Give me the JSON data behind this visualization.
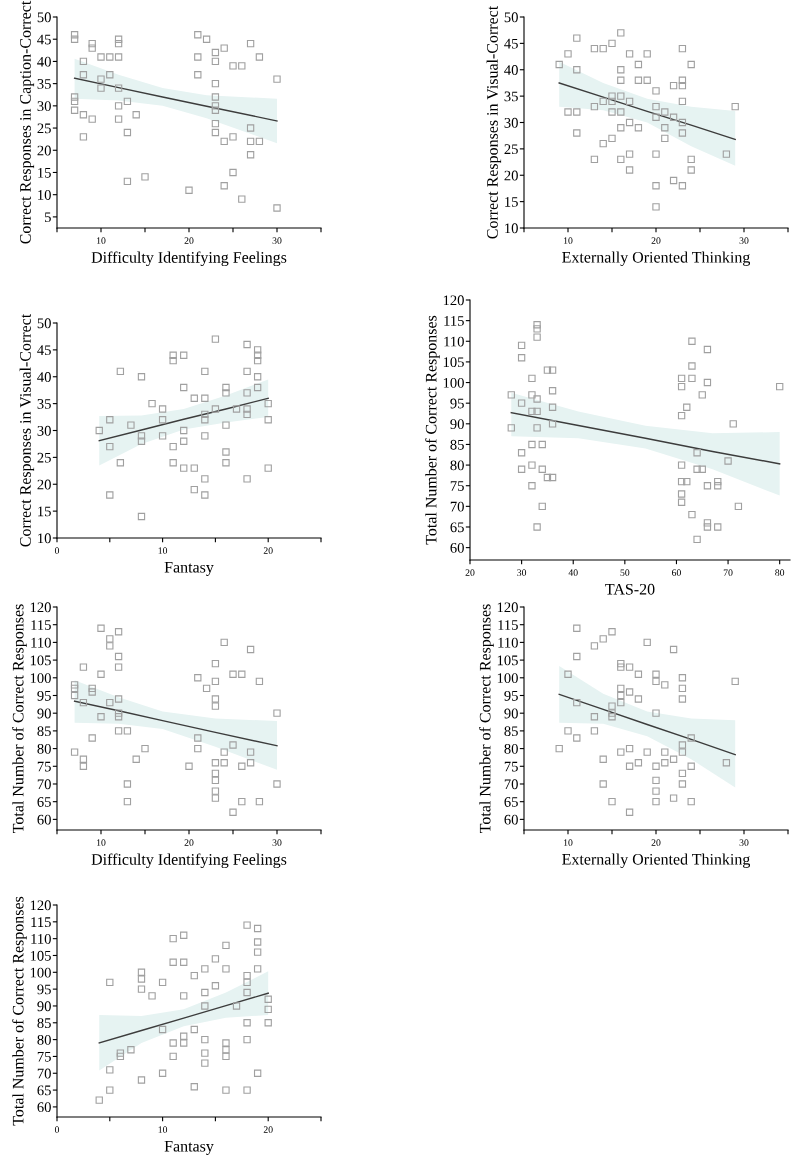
{
  "chart_data": [
    {
      "type": "scatter",
      "xlabel": "Difficulty Identifying Feelings",
      "ylabel": "Correct Responses in Caption-Correct",
      "xlim": [
        5,
        35
      ],
      "xticks": [
        {
          "value": 5,
          "label": null
        },
        10,
        {
          "value": 15,
          "label": null
        },
        20,
        {
          "value": 25,
          "label": null
        },
        30,
        {
          "value": 35,
          "label": null
        }
      ],
      "ylim": [
        2.5,
        50
      ],
      "yticks": [
        5,
        10,
        15,
        20,
        25,
        30,
        35,
        40,
        45,
        50
      ],
      "series": [
        {
          "marker": "square",
          "color": "#a0a0a0",
          "x": [
            7,
            7,
            7,
            7,
            7,
            8,
            8,
            8,
            8,
            9,
            9,
            9,
            10,
            10,
            10,
            11,
            11,
            12,
            12,
            12,
            12,
            12,
            12,
            13,
            13,
            13,
            14,
            15,
            20,
            21,
            21,
            21,
            22,
            23,
            23,
            23,
            23,
            23,
            23,
            23,
            23,
            24,
            24,
            24,
            25,
            25,
            25,
            26,
            26,
            27,
            27,
            27,
            27,
            28,
            28,
            30,
            30
          ],
          "values": [
            46,
            45,
            32,
            31,
            29,
            40,
            37,
            28,
            23,
            44,
            43,
            27,
            41,
            36,
            34,
            41,
            37,
            45,
            44,
            41,
            34,
            30,
            27,
            31,
            24,
            13,
            28,
            14,
            11,
            46,
            41,
            37,
            45,
            42,
            40,
            35,
            32,
            30,
            29,
            26,
            24,
            43,
            22,
            12,
            39,
            23,
            15,
            39,
            9,
            44,
            25,
            22,
            19,
            41,
            22,
            36,
            7
          ]
        },
        {
          "type": "line",
          "color": "#3c3c3c",
          "x": [
            7,
            12,
            17,
            22,
            30
          ],
          "values": [
            36.2,
            34.1,
            32.0,
            29.9,
            26.6
          ],
          "lower": [
            31.6,
            31.2,
            30.0,
            27.2,
            21.6
          ],
          "upper": [
            40.6,
            37.0,
            34.0,
            32.4,
            31.6
          ]
        }
      ]
    },
    {
      "type": "scatter",
      "xlabel": "Externally Oriented Thinking",
      "ylabel": "Correct Responses in Visual-Correct",
      "xlim": [
        5,
        35
      ],
      "xticks": [
        {
          "value": 5,
          "label": null
        },
        10,
        {
          "value": 15,
          "label": null
        },
        20,
        {
          "value": 25,
          "label": null
        },
        30,
        {
          "value": 35,
          "label": null
        }
      ],
      "ylim": [
        10,
        50
      ],
      "yticks": [
        10,
        15,
        20,
        25,
        30,
        35,
        40,
        45,
        50
      ],
      "series": [
        {
          "marker": "square",
          "color": "#a0a0a0",
          "x": [
            9,
            10,
            10,
            11,
            11,
            11,
            11,
            13,
            13,
            13,
            14,
            14,
            14,
            15,
            15,
            15,
            15,
            15,
            16,
            16,
            16,
            16,
            16,
            16,
            16,
            17,
            17,
            17,
            17,
            17,
            18,
            18,
            18,
            19,
            19,
            20,
            20,
            20,
            20,
            20,
            20,
            21,
            21,
            21,
            22,
            22,
            22,
            23,
            23,
            23,
            23,
            23,
            23,
            23,
            24,
            24,
            24,
            28,
            29
          ],
          "values": [
            41,
            43,
            32,
            46,
            40,
            32,
            28,
            44,
            33,
            23,
            44,
            34,
            26,
            45,
            35,
            34,
            32,
            27,
            47,
            40,
            38,
            35,
            32,
            29,
            23,
            43,
            34,
            30,
            24,
            21,
            41,
            38,
            29,
            43,
            38,
            36,
            33,
            31,
            24,
            18,
            14,
            32,
            29,
            27,
            37,
            31,
            19,
            44,
            38,
            37,
            34,
            30,
            28,
            18,
            41,
            23,
            21,
            24,
            33
          ]
        },
        {
          "type": "line",
          "color": "#3c3c3c",
          "x": [
            9,
            14,
            19,
            24,
            29
          ],
          "values": [
            37.5,
            34.8,
            32.1,
            29.5,
            26.8
          ],
          "lower": [
            33.0,
            32.3,
            30.0,
            25.5,
            21.8
          ],
          "upper": [
            41.5,
            37.5,
            34.5,
            33.0,
            32.2
          ]
        }
      ]
    },
    {
      "type": "scatter",
      "xlabel": "Fantasy",
      "ylabel": "Correct Responses in Visual-Correct",
      "xlim": [
        0,
        25
      ],
      "xticks": [
        0,
        {
          "value": 5,
          "label": null
        },
        10,
        {
          "value": 15,
          "label": null
        },
        20,
        {
          "value": 25,
          "label": null
        }
      ],
      "ylim": [
        10,
        50
      ],
      "yticks": [
        10,
        15,
        20,
        25,
        30,
        35,
        40,
        45,
        50
      ],
      "series": [
        {
          "marker": "square",
          "color": "#a0a0a0",
          "x": [
            4,
            5,
            5,
            5,
            6,
            6,
            7,
            8,
            8,
            8,
            8,
            9,
            10,
            10,
            10,
            11,
            11,
            11,
            11,
            12,
            12,
            12,
            12,
            12,
            13,
            13,
            13,
            14,
            14,
            14,
            14,
            14,
            14,
            14,
            15,
            15,
            16,
            16,
            16,
            16,
            16,
            17,
            18,
            18,
            18,
            18,
            18,
            18,
            19,
            19,
            19,
            19,
            19,
            20,
            20,
            20
          ],
          "values": [
            30,
            32,
            27,
            18,
            41,
            24,
            31,
            40,
            29,
            28,
            14,
            35,
            34,
            32,
            29,
            44,
            43,
            27,
            24,
            44,
            38,
            30,
            28,
            23,
            36,
            23,
            19,
            41,
            36,
            33,
            32,
            29,
            21,
            18,
            47,
            34,
            38,
            37,
            31,
            26,
            24,
            34,
            46,
            41,
            37,
            34,
            33,
            21,
            45,
            44,
            43,
            40,
            38,
            35,
            32,
            23
          ]
        },
        {
          "type": "line",
          "color": "#3c3c3c",
          "x": [
            4,
            8,
            12,
            16,
            20
          ],
          "values": [
            28.1,
            30.1,
            32.1,
            34.0,
            36.0
          ],
          "lower": [
            23.5,
            27.5,
            30.2,
            31.5,
            32.5
          ],
          "upper": [
            32.7,
            32.8,
            34.0,
            36.5,
            39.5
          ]
        }
      ]
    },
    {
      "type": "scatter",
      "xlabel": "TAS-20",
      "ylabel": "Total Number of Correct Responses",
      "xlim": [
        20,
        82
      ],
      "xticks": [
        20,
        30,
        40,
        50,
        60,
        70,
        80
      ],
      "ylim": [
        57,
        120
      ],
      "yticks": [
        60,
        65,
        70,
        75,
        80,
        85,
        90,
        95,
        100,
        105,
        110,
        115,
        120
      ],
      "series": [
        {
          "marker": "square",
          "color": "#a0a0a0",
          "x": [
            28,
            28,
            30,
            30,
            30,
            30,
            30,
            32,
            32,
            32,
            32,
            32,
            32,
            33,
            33,
            33,
            33,
            33,
            33,
            33,
            34,
            34,
            34,
            35,
            35,
            36,
            36,
            36,
            36,
            36,
            61,
            61,
            61,
            61,
            61,
            61,
            61,
            62,
            62,
            63,
            63,
            63,
            63,
            64,
            64,
            64,
            65,
            65,
            66,
            66,
            66,
            66,
            66,
            68,
            68,
            68,
            70,
            71,
            72,
            80
          ],
          "values": [
            97,
            89,
            109,
            106,
            95,
            83,
            79,
            101,
            97,
            93,
            85,
            80,
            75,
            114,
            113,
            111,
            96,
            93,
            89,
            65,
            85,
            79,
            70,
            103,
            77,
            103,
            98,
            94,
            90,
            77,
            101,
            99,
            92,
            80,
            76,
            73,
            71,
            94,
            76,
            110,
            104,
            101,
            68,
            83,
            79,
            62,
            97,
            79,
            108,
            100,
            75,
            66,
            65,
            76,
            75,
            65,
            81,
            90,
            70,
            99
          ]
        },
        {
          "type": "line",
          "color": "#3c3c3c",
          "x": [
            28,
            41,
            54,
            67,
            80
          ],
          "values": [
            92.7,
            89.6,
            86.5,
            83.3,
            80.3
          ],
          "lower": [
            87.0,
            86.5,
            84.0,
            79.0,
            72.6
          ],
          "upper": [
            97.5,
            93.0,
            89.5,
            87.7,
            88.0
          ]
        }
      ]
    },
    {
      "type": "scatter",
      "xlabel": "Difficulty Identifying Feelings",
      "ylabel": "Total Number of Correct Responses",
      "xlim": [
        5,
        35
      ],
      "xticks": [
        {
          "value": 5,
          "label": null
        },
        10,
        {
          "value": 15,
          "label": null
        },
        20,
        {
          "value": 25,
          "label": null
        },
        30,
        {
          "value": 35,
          "label": null
        }
      ],
      "ylim": [
        57,
        120
      ],
      "yticks": [
        60,
        65,
        70,
        75,
        80,
        85,
        90,
        95,
        100,
        105,
        110,
        115,
        120
      ],
      "series": [
        {
          "marker": "square",
          "color": "#a0a0a0",
          "x": [
            7,
            7,
            7,
            7,
            8,
            8,
            8,
            8,
            9,
            9,
            9,
            10,
            10,
            10,
            11,
            11,
            11,
            12,
            12,
            12,
            12,
            12,
            12,
            12,
            13,
            13,
            13,
            14,
            15,
            20,
            21,
            21,
            21,
            22,
            23,
            23,
            23,
            23,
            23,
            23,
            23,
            23,
            23,
            24,
            24,
            24,
            25,
            25,
            25,
            26,
            26,
            26,
            27,
            27,
            27,
            28,
            28,
            30,
            30
          ],
          "values": [
            98,
            97,
            95,
            79,
            103,
            93,
            77,
            75,
            97,
            96,
            83,
            114,
            101,
            89,
            111,
            109,
            93,
            113,
            106,
            103,
            94,
            90,
            89,
            85,
            85,
            70,
            65,
            77,
            80,
            75,
            100,
            83,
            80,
            97,
            104,
            99,
            94,
            92,
            76,
            73,
            71,
            68,
            66,
            110,
            79,
            76,
            101,
            81,
            62,
            101,
            75,
            65,
            108,
            79,
            76,
            99,
            65,
            90,
            70
          ]
        },
        {
          "type": "line",
          "color": "#3c3c3c",
          "x": [
            7,
            12,
            17,
            23,
            30
          ],
          "values": [
            93.4,
            90.7,
            87.9,
            84.6,
            80.8
          ],
          "lower": [
            87.3,
            87.0,
            85.5,
            80.5,
            74.0
          ],
          "upper": [
            99.3,
            94.5,
            90.5,
            88.5,
            87.8
          ]
        }
      ]
    },
    {
      "type": "scatter",
      "xlabel": "Externally Oriented Thinking",
      "ylabel": "Total Number of Correct Responses",
      "xlim": [
        5,
        35
      ],
      "xticks": [
        {
          "value": 5,
          "label": null
        },
        10,
        {
          "value": 15,
          "label": null
        },
        20,
        {
          "value": 25,
          "label": null
        },
        30,
        {
          "value": 35,
          "label": null
        }
      ],
      "ylim": [
        57,
        120
      ],
      "yticks": [
        60,
        65,
        70,
        75,
        80,
        85,
        90,
        95,
        100,
        105,
        110,
        115,
        120
      ],
      "series": [
        {
          "marker": "square",
          "color": "#a0a0a0",
          "x": [
            9,
            10,
            10,
            11,
            11,
            11,
            11,
            13,
            13,
            13,
            14,
            14,
            14,
            15,
            15,
            15,
            15,
            15,
            16,
            16,
            16,
            16,
            16,
            16,
            17,
            17,
            17,
            17,
            17,
            18,
            18,
            18,
            19,
            19,
            20,
            20,
            20,
            20,
            20,
            20,
            20,
            21,
            21,
            21,
            22,
            22,
            22,
            23,
            23,
            23,
            23,
            23,
            23,
            23,
            24,
            24,
            24,
            28,
            29
          ],
          "values": [
            80,
            101,
            85,
            114,
            106,
            93,
            83,
            109,
            89,
            85,
            111,
            77,
            70,
            113,
            92,
            90,
            89,
            65,
            104,
            103,
            97,
            95,
            93,
            79,
            103,
            96,
            80,
            75,
            62,
            101,
            94,
            76,
            110,
            79,
            101,
            99,
            90,
            75,
            71,
            68,
            65,
            98,
            79,
            76,
            108,
            77,
            66,
            100,
            97,
            94,
            81,
            79,
            73,
            70,
            83,
            75,
            65,
            76,
            99
          ]
        },
        {
          "type": "line",
          "color": "#3c3c3c",
          "x": [
            9,
            14,
            19,
            24,
            29
          ],
          "values": [
            95.3,
            91.1,
            86.8,
            82.6,
            78.3
          ],
          "lower": [
            87.3,
            87.0,
            83.5,
            77.0,
            69.0
          ],
          "upper": [
            103.3,
            95.5,
            90.5,
            88.5,
            88.0
          ]
        }
      ]
    },
    {
      "type": "scatter",
      "xlabel": "Fantasy",
      "ylabel": "Total Number of Correct Responses",
      "xlim": [
        0,
        25
      ],
      "xticks": [
        0,
        {
          "value": 5,
          "label": null
        },
        10,
        {
          "value": 15,
          "label": null
        },
        20,
        {
          "value": 25,
          "label": null
        }
      ],
      "ylim": [
        57,
        120
      ],
      "yticks": [
        60,
        65,
        70,
        75,
        80,
        85,
        90,
        95,
        100,
        105,
        110,
        115,
        120
      ],
      "series": [
        {
          "marker": "square",
          "color": "#a0a0a0",
          "x": [
            4,
            5,
            5,
            5,
            6,
            6,
            7,
            8,
            8,
            8,
            8,
            9,
            10,
            10,
            10,
            11,
            11,
            11,
            11,
            12,
            12,
            12,
            12,
            12,
            13,
            13,
            13,
            14,
            14,
            14,
            14,
            14,
            14,
            15,
            15,
            16,
            16,
            16,
            16,
            16,
            16,
            17,
            18,
            18,
            18,
            18,
            18,
            18,
            18,
            19,
            19,
            19,
            19,
            19,
            20,
            20,
            20
          ],
          "values": [
            62,
            97,
            71,
            65,
            76,
            75,
            77,
            100,
            98,
            95,
            68,
            93,
            97,
            83,
            70,
            110,
            103,
            79,
            75,
            111,
            103,
            93,
            81,
            79,
            99,
            83,
            66,
            101,
            94,
            90,
            80,
            76,
            73,
            104,
            96,
            108,
            101,
            79,
            77,
            75,
            65,
            90,
            114,
            99,
            97,
            94,
            85,
            80,
            65,
            113,
            109,
            106,
            101,
            70,
            92,
            89,
            85
          ]
        },
        {
          "type": "line",
          "color": "#3c3c3c",
          "x": [
            4,
            8,
            12,
            16,
            20
          ],
          "values": [
            79.0,
            82.7,
            86.4,
            90.1,
            93.8
          ],
          "lower": [
            70.8,
            79.0,
            84.0,
            86.5,
            87.3
          ],
          "upper": [
            87.3,
            87.0,
            89.0,
            94.0,
            100.3
          ]
        }
      ]
    }
  ]
}
